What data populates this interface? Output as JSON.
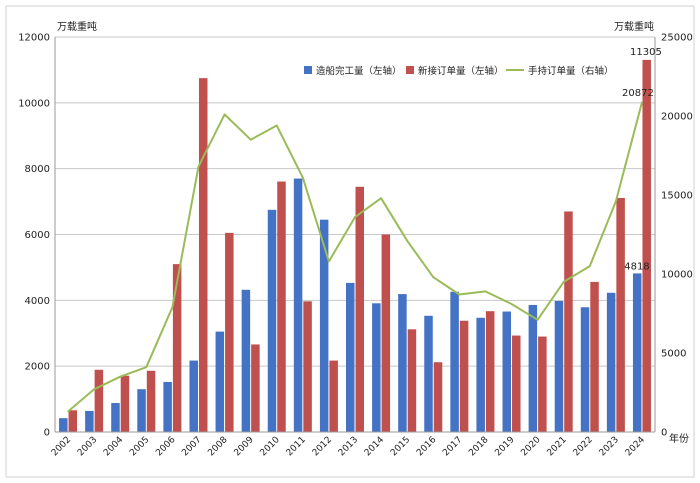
{
  "chart_data": {
    "type": "bar",
    "categories": [
      "2002",
      "2003",
      "2004",
      "2005",
      "2006",
      "2007",
      "2008",
      "2009",
      "2010",
      "2011",
      "2012",
      "2013",
      "2014",
      "2015",
      "2016",
      "2017",
      "2018",
      "2019",
      "2020",
      "2021",
      "2022",
      "2023",
      "2024"
    ],
    "series": [
      {
        "name": "造船完工量（左轴）",
        "axis": "left",
        "type": "bar",
        "color": "#4472C4",
        "values": [
          420,
          640,
          880,
          1300,
          1520,
          2170,
          3050,
          4320,
          6750,
          7700,
          6450,
          4530,
          3910,
          4190,
          3530,
          4260,
          3470,
          3660,
          3860,
          3980,
          3790,
          4230,
          4818
        ]
      },
      {
        "name": "新接订单量（左轴）",
        "axis": "left",
        "type": "bar",
        "color": "#C0504D",
        "values": [
          660,
          1890,
          1710,
          1860,
          5100,
          10750,
          6050,
          2660,
          7610,
          3970,
          2170,
          7450,
          6000,
          3120,
          2120,
          3380,
          3670,
          2930,
          2900,
          6700,
          4560,
          7110,
          11305
        ]
      },
      {
        "name": "手持订单量（右轴）",
        "axis": "right",
        "type": "line",
        "color": "#9BBB59",
        "values": [
          1300,
          2700,
          3500,
          4100,
          7900,
          16800,
          20100,
          18500,
          19400,
          16100,
          10800,
          13600,
          14800,
          12100,
          9800,
          8700,
          8900,
          8100,
          7100,
          9500,
          10500,
          14600,
          20872
        ]
      }
    ],
    "y_left": {
      "label": "万载重吨",
      "min": 0,
      "max": 12000,
      "ticks": [
        0,
        2000,
        4000,
        6000,
        8000,
        10000,
        12000
      ]
    },
    "y_right": {
      "label": "万载重吨",
      "min": 0,
      "max": 25000,
      "ticks": [
        0,
        5000,
        10000,
        15000,
        20000,
        25000
      ]
    },
    "xlabel": "年份",
    "annotations": [
      {
        "text": "11305",
        "series": 1,
        "index": 22
      },
      {
        "text": "20872",
        "series": 2,
        "index": 22
      },
      {
        "text": "4818",
        "series": 0,
        "index": 22
      }
    ],
    "legend_position": "top-right",
    "grid": "horizontal"
  }
}
